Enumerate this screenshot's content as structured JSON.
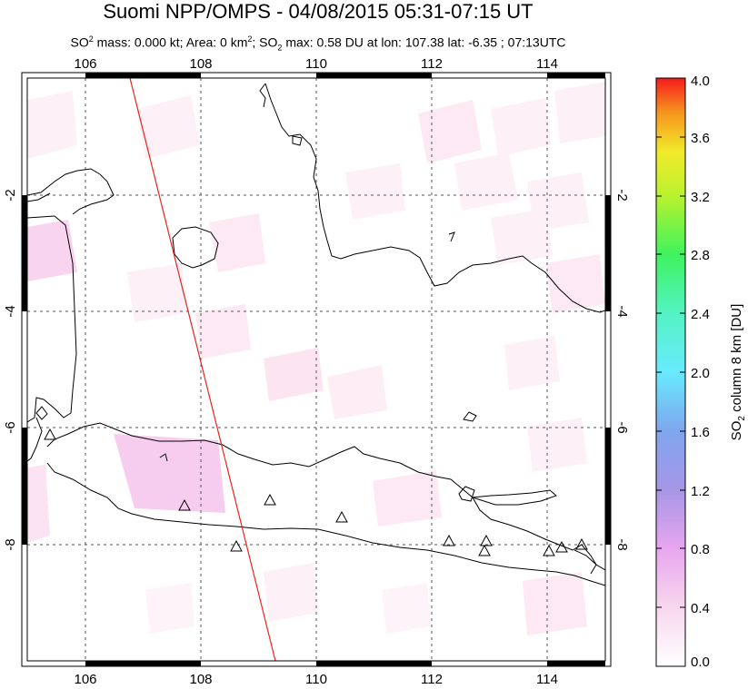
{
  "title": "Suomi NPP/OMPS - 04/08/2015 05:31-07:15 UT",
  "subtitle": {
    "p1": "SO",
    "s1": "2",
    "p2": " mass: 0.000 kt; Area: 0 km",
    "s2": "2",
    "p3": "; SO",
    "s3": "2",
    "p4": " max: 0.58 DU at lon: 107.38 lat: -6.35 ; 07:13UTC"
  },
  "map": {
    "lon_range": [
      105,
      115
    ],
    "lat_range": [
      -10,
      0
    ],
    "lon_ticks": [
      "106",
      "108",
      "110",
      "112",
      "114"
    ],
    "lat_ticks": [
      "-2",
      "-4",
      "-6",
      "-8"
    ],
    "grid": "dashed",
    "colors": {
      "coast": "#000000",
      "track": "#e8241e",
      "frame": "#000000"
    },
    "volcano_marker": "triangle-icon",
    "volcano_count": 11
  },
  "colorbar": {
    "title_pre": "SO",
    "title_sub": "2",
    "title_post": " column 8 km [DU]",
    "ticks": [
      "0.0",
      "0.4",
      "0.8",
      "1.2",
      "1.6",
      "2.0",
      "2.4",
      "2.8",
      "3.2",
      "3.6",
      "4.0"
    ],
    "range": [
      0,
      4
    ]
  }
}
